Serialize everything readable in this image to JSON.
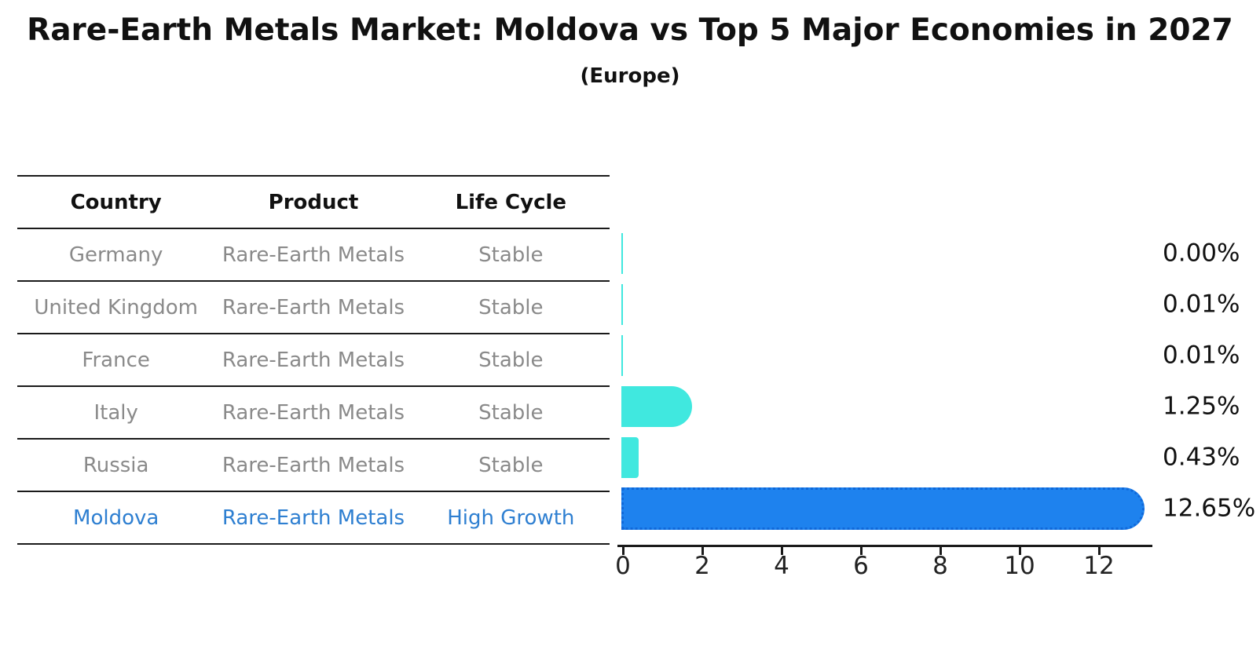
{
  "title": "Rare-Earth Metals Market: Moldova vs Top 5 Major Economies in 2027",
  "subtitle": "(Europe)",
  "table": {
    "headers": [
      "Country",
      "Product",
      "Life Cycle"
    ],
    "rows": [
      {
        "country": "Germany",
        "product": "Rare-Earth Metals",
        "life_cycle": "Stable",
        "highlight": false
      },
      {
        "country": "United Kingdom",
        "product": "Rare-Earth Metals",
        "life_cycle": "Stable",
        "highlight": false
      },
      {
        "country": "France",
        "product": "Rare-Earth Metals",
        "life_cycle": "Stable",
        "highlight": false
      },
      {
        "country": "Italy",
        "product": "Rare-Earth Metals",
        "life_cycle": "Stable",
        "highlight": false
      },
      {
        "country": "Russia",
        "product": "Rare-Earth Metals",
        "life_cycle": "Stable",
        "highlight": false
      },
      {
        "country": "Moldova",
        "product": "Rare-Earth Metals",
        "life_cycle": "High Growth",
        "highlight": true
      }
    ]
  },
  "chart_data": {
    "type": "bar",
    "orientation": "horizontal",
    "title": "Rare-Earth Metals Market: Moldova vs Top 5 Major Economies in 2027 (Europe)",
    "categories": [
      "Germany",
      "United Kingdom",
      "France",
      "Italy",
      "Russia",
      "Moldova"
    ],
    "values": [
      0.0,
      0.01,
      0.01,
      1.25,
      0.43,
      12.65
    ],
    "value_labels": [
      "0.00%",
      "0.01%",
      "0.01%",
      "1.25%",
      "0.43%",
      "12.65%"
    ],
    "series_colors": [
      "#40e8df",
      "#40e8df",
      "#40e8df",
      "#40e8df",
      "#40e8df",
      "#1e82ee"
    ],
    "x_ticks": [
      0,
      2,
      4,
      6,
      8,
      10,
      12
    ],
    "xlim": [
      0,
      13.3
    ],
    "xlabel": "",
    "ylabel": "",
    "grid": false,
    "legend": false
  },
  "colors": {
    "bar_cyan": "#40e8df",
    "bar_blue": "#1e82ee",
    "bar_blue_edge": "#1068d9",
    "highlight_text": "#2e7fd1",
    "muted_text": "#8a8a8a",
    "line": "#1a1a1a"
  }
}
